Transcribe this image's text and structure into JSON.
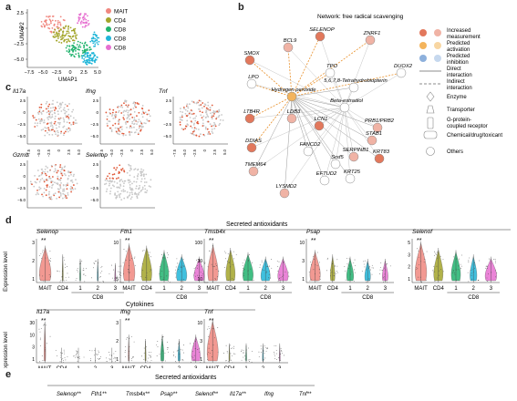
{
  "panels": {
    "a": "a",
    "b": "b",
    "c": "c",
    "d": "d",
    "e": "e"
  },
  "umap": {
    "ylabel": "UMAP2",
    "xlabel": "UMAP1",
    "yticks": [
      "2.5",
      "0",
      "−2.5",
      "−5.0"
    ],
    "xticks": [
      "−7.5",
      "−5.0",
      "−2.5",
      "0",
      "2.5",
      "5.0"
    ],
    "legend": [
      {
        "name": "MAIT",
        "color": "#f0877f"
      },
      {
        "name": "CD4",
        "color": "#a3a52a"
      },
      {
        "name": "CD8 1",
        "color": "#21b36e"
      },
      {
        "name": "CD8 2",
        "color": "#1fb5d8"
      },
      {
        "name": "CD8 3",
        "color": "#e66fd0"
      }
    ]
  },
  "network": {
    "title": "Network: free radical scavenging",
    "nodes": [
      "SMOX",
      "BCL9",
      "SELENOP",
      "ZNRF1",
      "DUOX2",
      "LPO",
      "TPO",
      "5,6,7,8-Tetrahydrobiopterin",
      "Hydrogen peroxide",
      "Beta-estradiol",
      "LTB4R",
      "LDB3",
      "LCN1",
      "PRB1/PRB2",
      "STAB1",
      "DDIAS",
      "FANCD2",
      "Srsf5",
      "SERPINB1",
      "KRT83",
      "TMEM64",
      "EFTUD2",
      "KRT25",
      "LYSMD2"
    ],
    "legend": [
      "Increased measurement",
      "Predicted activation",
      "Predicted inhibition",
      "Direct interaction",
      "Indirect interaction",
      "Enzyme",
      "Transporter",
      "G-protein-coupled receptor",
      "Chemical/drug/toxicant",
      "Others"
    ]
  },
  "featureplots": {
    "genes": [
      "Il17a",
      "Ifng",
      "Tnf",
      "Gzmb",
      "Selenop"
    ],
    "yticks": [
      "2.5",
      "0",
      "−2.5",
      "−5.0"
    ],
    "xticks": [
      "−7.5",
      "−5.0",
      "−2.5",
      "0",
      "2.5",
      "5.0"
    ]
  },
  "violins": {
    "ylabel": "Expression level",
    "row1_title": "Secreted antioxidants",
    "row2_title": "Cytokines",
    "groups": [
      "MAIT",
      "CD4",
      "1",
      "2",
      "3"
    ],
    "cd8": "CD8",
    "sig": "**",
    "genes_row1": [
      {
        "name": "Selenop",
        "yticks": [
          "3",
          "2",
          "1"
        ]
      },
      {
        "name": "Fth1",
        "yticks": [
          "10",
          "5"
        ]
      },
      {
        "name": "Tmsb4x",
        "yticks": [
          "100",
          "30",
          "10"
        ]
      },
      {
        "name": "Psap",
        "yticks": [
          "10",
          "3",
          "1"
        ]
      },
      {
        "name": "Selenof",
        "yticks": [
          "5",
          "3",
          "2",
          "1"
        ]
      }
    ],
    "genes_row2": [
      {
        "name": "Il17a",
        "yticks": [
          "30",
          "10",
          "3",
          "1"
        ]
      },
      {
        "name": "Ifng",
        "yticks": [
          "3",
          "2",
          "1"
        ]
      },
      {
        "name": "Tnf",
        "yticks": [
          "10",
          "3",
          "1"
        ]
      }
    ],
    "colors": [
      "#f0877f",
      "#a3a52a",
      "#21b36e",
      "#1fb5d8",
      "#e66fd0"
    ]
  },
  "panel_e": {
    "title": "Secreted antioxidants",
    "headers": [
      "Selenop**",
      "Fth1**",
      "Tmsb4x**",
      "Psap**",
      "Selenof**",
      "Il17a**",
      "Ifng",
      "Tnf**"
    ]
  }
}
